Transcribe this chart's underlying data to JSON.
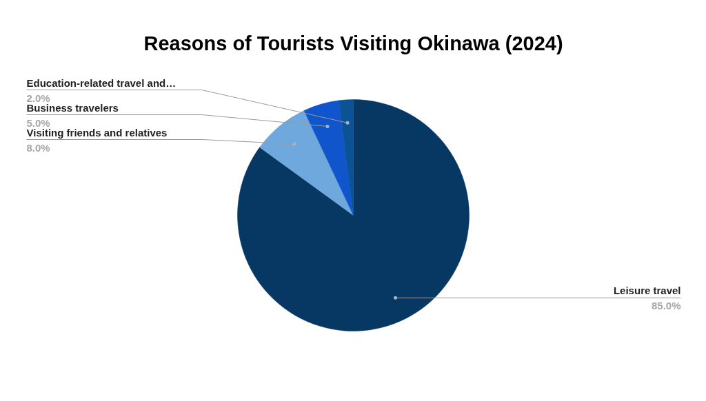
{
  "chart_data": {
    "type": "pie",
    "title": "Reasons of Tourists Visiting Okinawa (2024)",
    "categories": [
      "Leisure travel",
      "Visiting friends and relatives",
      "Business travelers",
      "Education-related travel and…"
    ],
    "values": [
      85,
      8,
      5,
      2
    ],
    "colors": [
      "#073763",
      "#6fa8dc",
      "#1155cc",
      "#0b5394"
    ],
    "value_labels": [
      "85.0%",
      "8.0%",
      "5.0%",
      "2.0%"
    ]
  }
}
